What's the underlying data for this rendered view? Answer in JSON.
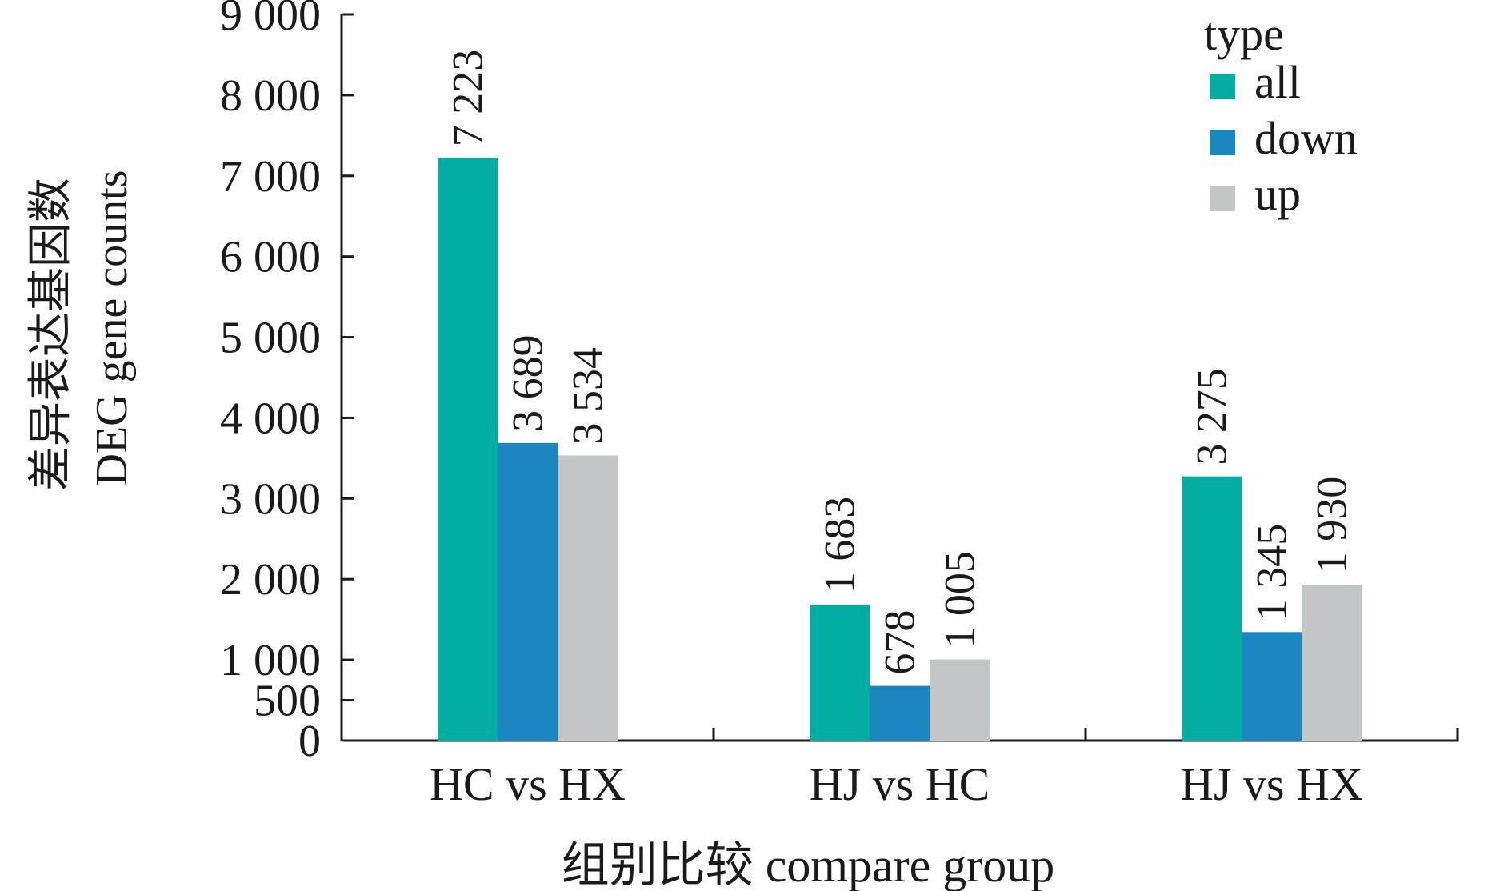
{
  "chart_data": {
    "type": "bar",
    "title": "",
    "xlabel": "组别比较 compare group",
    "ylabel_lines": [
      "差异表达基因数",
      "DEG gene counts"
    ],
    "categories": [
      "HC vs HX",
      "HJ vs HC",
      "HJ vs HX"
    ],
    "y_ticks": [
      0,
      500,
      1000,
      2000,
      3000,
      4000,
      5000,
      6000,
      7000,
      8000,
      9000
    ],
    "y_tick_labels": [
      "0",
      "500",
      "1 000",
      "2 000",
      "3 000",
      "4 000",
      "5 000",
      "6 000",
      "7 000",
      "8 000",
      "9 000"
    ],
    "ylim": [
      0,
      9000
    ],
    "legend": {
      "title": "type",
      "position": "top-right"
    },
    "grid": false,
    "series": [
      {
        "name": "all",
        "color": "#00ada0",
        "values": [
          7223,
          1683,
          3275
        ],
        "labels": [
          "7 223",
          "1 683",
          "3 275"
        ]
      },
      {
        "name": "down",
        "color": "#1b87c0",
        "values": [
          3689,
          678,
          1345
        ],
        "labels": [
          "3 689",
          "678",
          "1 345"
        ]
      },
      {
        "name": "up",
        "color": "#c3c6c7",
        "values": [
          3534,
          1005,
          1930
        ],
        "labels": [
          "3 534",
          "1 005",
          "1 930"
        ]
      }
    ]
  }
}
